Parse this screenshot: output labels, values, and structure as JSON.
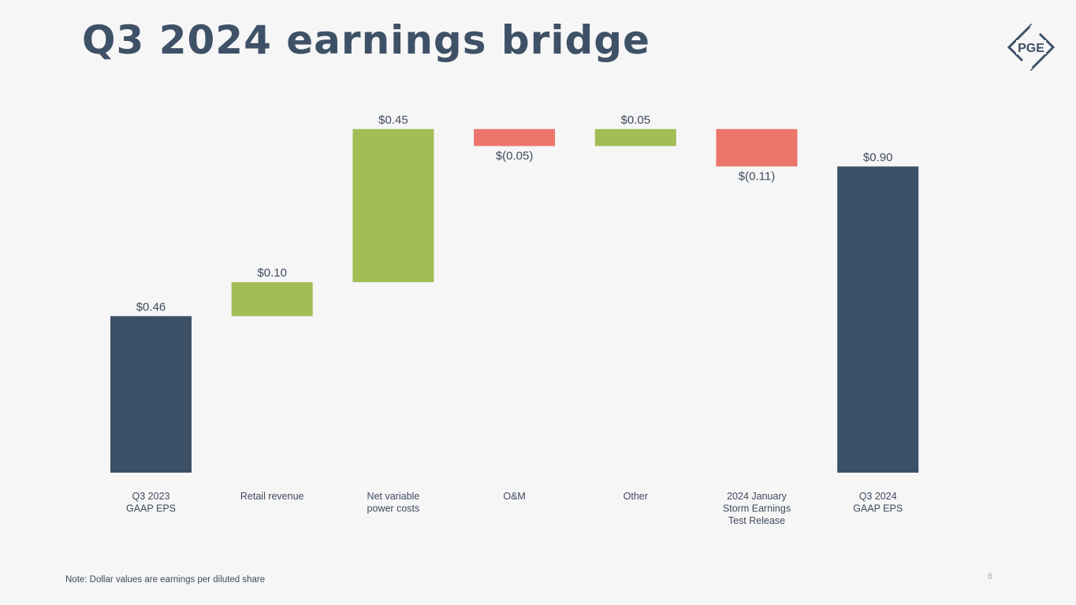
{
  "slide": {
    "title": "Q3 2024 earnings bridge",
    "note": "Note: Dollar values are earnings per diluted share",
    "page_number": "6",
    "logo_text": "PGE"
  },
  "colors": {
    "total": "#3b5066",
    "increase": "#a2bd55",
    "decrease": "#ec766b",
    "title": "#3e5166",
    "axis_text": "#3e4b5a"
  },
  "chart_data": {
    "type": "bar",
    "subtype": "waterfall",
    "categories": [
      [
        "Q3 2023",
        "GAAP EPS"
      ],
      [
        "Retail revenue"
      ],
      [
        "Net variable",
        "power costs"
      ],
      [
        "O&M"
      ],
      [
        "Other"
      ],
      [
        "2024 January",
        "Storm Earnings",
        "Test Release"
      ],
      [
        "Q3 2024",
        "GAAP EPS"
      ]
    ],
    "values": [
      0.46,
      0.1,
      0.45,
      -0.05,
      0.05,
      -0.11,
      0.9
    ],
    "kinds": [
      "total",
      "increase",
      "increase",
      "decrease",
      "increase",
      "decrease",
      "total"
    ],
    "data_labels": [
      "$0.46",
      "$0.10",
      "$0.45",
      "$(0.05)",
      "$0.05",
      "$(0.11)",
      "$0.90"
    ],
    "units": "earnings per diluted share ($)",
    "ylim": [
      0,
      1.01
    ],
    "grid": false,
    "legend": "none",
    "xlabel": "",
    "ylabel": ""
  }
}
